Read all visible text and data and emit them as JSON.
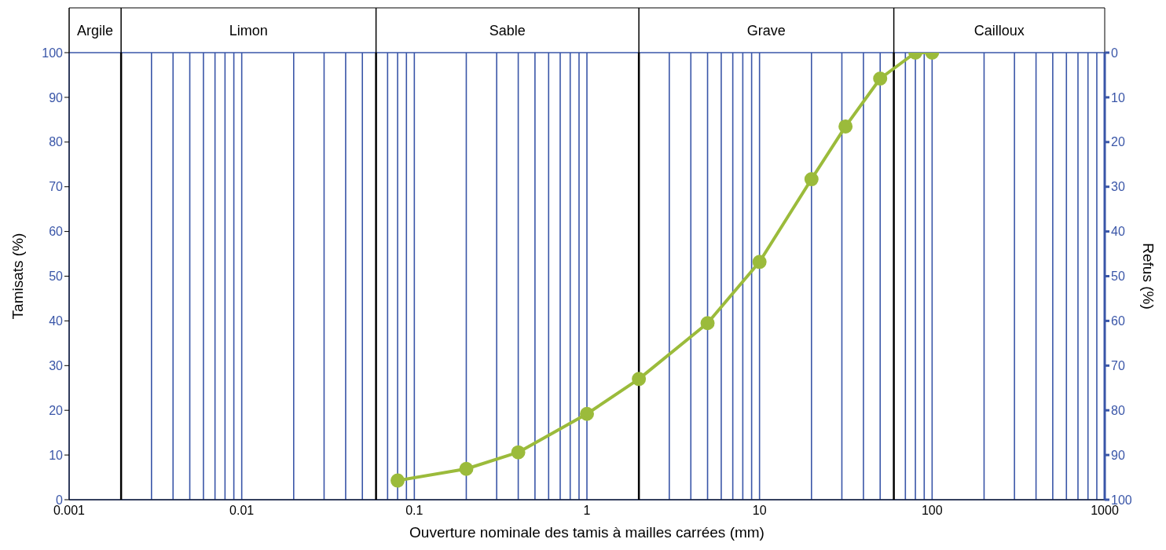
{
  "chart_data": {
    "type": "line",
    "xlabel": "Ouverture nominale des tamis à mailles carrées (mm)",
    "ylabel": "Tamisats (%)",
    "y2label": "Refus (%)",
    "log": "x",
    "x": [
      0.08,
      0.2,
      0.4,
      1,
      2,
      5,
      10,
      20,
      31.5,
      50,
      80,
      100
    ],
    "series": [
      {
        "color": "#9bbb3b",
        "values": [
          4.3,
          6.9,
          10.6,
          19.2,
          27,
          39.5,
          53.2,
          71.7,
          83.5,
          94.2,
          100,
          100
        ]
      }
    ],
    "xlim": [
      0.001,
      1000
    ],
    "xticks": [
      {
        "value": 0.001,
        "label": "0.001"
      },
      {
        "value": 0.003,
        "label": null
      },
      {
        "value": 0.004,
        "label": null
      },
      {
        "value": 0.005,
        "label": null
      },
      {
        "value": 0.006,
        "label": null
      },
      {
        "value": 0.007,
        "label": null
      },
      {
        "value": 0.008,
        "label": null
      },
      {
        "value": 0.009,
        "label": null
      },
      {
        "value": 0.01,
        "label": "0.01"
      },
      {
        "value": 0.02,
        "label": null
      },
      {
        "value": 0.03,
        "label": null
      },
      {
        "value": 0.04,
        "label": null
      },
      {
        "value": 0.05,
        "label": null
      },
      {
        "value": 0.07,
        "label": null
      },
      {
        "value": 0.08,
        "label": null
      },
      {
        "value": 0.09,
        "label": null
      },
      {
        "value": 0.1,
        "label": "0.1"
      },
      {
        "value": 0.2,
        "label": null
      },
      {
        "value": 0.3,
        "label": null
      },
      {
        "value": 0.4,
        "label": null
      },
      {
        "value": 0.5,
        "label": null
      },
      {
        "value": 0.6,
        "label": null
      },
      {
        "value": 0.7,
        "label": null
      },
      {
        "value": 0.8,
        "label": null
      },
      {
        "value": 0.9,
        "label": null
      },
      {
        "value": 1,
        "label": "1"
      },
      {
        "value": 3,
        "label": null
      },
      {
        "value": 4,
        "label": null
      },
      {
        "value": 5,
        "label": null
      },
      {
        "value": 6,
        "label": null
      },
      {
        "value": 7,
        "label": null
      },
      {
        "value": 8,
        "label": null
      },
      {
        "value": 9,
        "label": null
      },
      {
        "value": 10,
        "label": "10"
      },
      {
        "value": 20,
        "label": null
      },
      {
        "value": 30,
        "label": null
      },
      {
        "value": 40,
        "label": null
      },
      {
        "value": 50,
        "label": null
      },
      {
        "value": 70,
        "label": null
      },
      {
        "value": 80,
        "label": null
      },
      {
        "value": 90,
        "label": null
      },
      {
        "value": 100,
        "label": "100"
      },
      {
        "value": 200,
        "label": null
      },
      {
        "value": 300,
        "label": null
      },
      {
        "value": 400,
        "label": null
      },
      {
        "value": 500,
        "label": null
      },
      {
        "value": 600,
        "label": null
      },
      {
        "value": 700,
        "label": null
      },
      {
        "value": 800,
        "label": null
      },
      {
        "value": 900,
        "label": null
      },
      {
        "value": 1000,
        "label": "1000"
      }
    ],
    "ylim": [
      0,
      100
    ],
    "yticks": [
      0,
      10,
      20,
      30,
      40,
      50,
      60,
      70,
      80,
      90,
      100
    ],
    "y2lim": [
      100,
      0
    ],
    "y2ticks": [
      0,
      10,
      20,
      30,
      40,
      50,
      60,
      70,
      80,
      90,
      100
    ],
    "ref_lines": [
      {
        "axis": "x",
        "value": 0.002,
        "color": "#000000"
      },
      {
        "axis": "x",
        "value": 0.06,
        "color": "#000000"
      },
      {
        "axis": "x",
        "value": 2,
        "color": "#000000"
      },
      {
        "axis": "x",
        "value": 60,
        "color": "#000000"
      }
    ],
    "annotations": [
      "Argile",
      "Limon",
      "Sable",
      "Grave",
      "Cailloux"
    ],
    "grid": true,
    "marker": "circle",
    "line_style": "solid",
    "legend": false
  }
}
